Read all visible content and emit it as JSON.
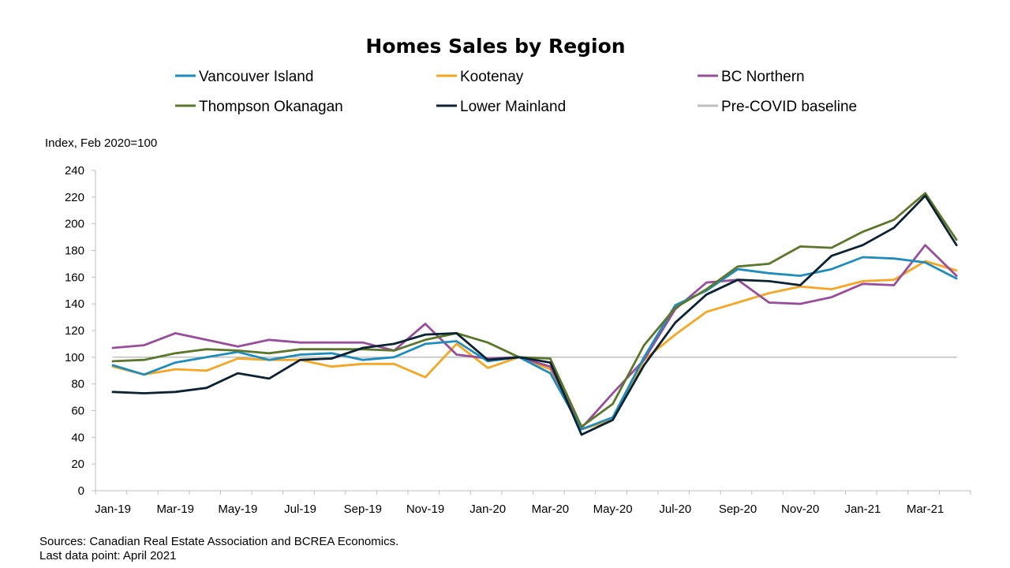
{
  "chart_data": {
    "type": "line",
    "title": "Homes Sales by Region",
    "ylabel": "Index, Feb 2020=100",
    "ylim": [
      0,
      240
    ],
    "yticks": [
      0,
      20,
      40,
      60,
      80,
      100,
      120,
      140,
      160,
      180,
      200,
      220,
      240
    ],
    "x": [
      "Jan-19",
      "Feb-19",
      "Mar-19",
      "Apr-19",
      "May-19",
      "Jun-19",
      "Jul-19",
      "Aug-19",
      "Sep-19",
      "Oct-19",
      "Nov-19",
      "Dec-19",
      "Jan-20",
      "Feb-20",
      "Mar-20",
      "Apr-20",
      "May-20",
      "Jun-20",
      "Jul-20",
      "Aug-20",
      "Sep-20",
      "Oct-20",
      "Nov-20",
      "Dec-20",
      "Jan-21",
      "Feb-21",
      "Mar-21",
      "Apr-21"
    ],
    "xtick_labels": [
      "Jan-19",
      "Mar-19",
      "May-19",
      "Jul-19",
      "Sep-19",
      "Nov-19",
      "Jan-20",
      "Mar-20",
      "May-20",
      "Jul-20",
      "Sep-20",
      "Nov-20",
      "Jan-21",
      "Mar-21"
    ],
    "grid": false,
    "legend_position": "top",
    "series": [
      {
        "name": "Vancouver Island",
        "color": "#1f8dbb",
        "values": [
          94,
          87,
          96,
          100,
          104,
          98,
          102,
          103,
          98,
          100,
          110,
          112,
          97,
          100,
          88,
          46,
          55,
          100,
          139,
          150,
          166,
          163,
          161,
          166,
          175,
          174,
          171,
          159
        ]
      },
      {
        "name": "Kootenay",
        "color": "#f5a623",
        "values": [
          93,
          87,
          91,
          90,
          99,
          98,
          98,
          93,
          95,
          95,
          85,
          110,
          92,
          100,
          91,
          46,
          53,
          98,
          117,
          134,
          141,
          148,
          153,
          151,
          157,
          158,
          172,
          165
        ]
      },
      {
        "name": "BC Northern",
        "color": "#984e9b",
        "values": [
          107,
          109,
          118,
          113,
          108,
          113,
          111,
          111,
          111,
          105,
          125,
          102,
          99,
          100,
          93,
          47,
          73,
          98,
          136,
          156,
          158,
          141,
          140,
          145,
          155,
          154,
          184,
          161
        ]
      },
      {
        "name": "Thompson Okanagan",
        "color": "#5c772b",
        "values": [
          97,
          98,
          103,
          106,
          105,
          103,
          106,
          106,
          106,
          105,
          113,
          118,
          111,
          100,
          99,
          48,
          65,
          109,
          137,
          151,
          168,
          170,
          183,
          182,
          194,
          203,
          223,
          188
        ]
      },
      {
        "name": "Lower Mainland",
        "color": "#0b2233",
        "values": [
          74,
          73,
          74,
          77,
          88,
          84,
          98,
          99,
          107,
          110,
          117,
          118,
          98,
          100,
          96,
          42,
          53,
          94,
          126,
          147,
          158,
          157,
          154,
          176,
          184,
          197,
          221,
          184
        ]
      },
      {
        "name": "Pre-COVID baseline",
        "color": "#bfbfbf",
        "values": [
          100,
          100,
          100,
          100,
          100,
          100,
          100,
          100,
          100,
          100,
          100,
          100,
          100,
          100,
          100,
          100,
          100,
          100,
          100,
          100,
          100,
          100,
          100,
          100,
          100,
          100,
          100,
          100
        ]
      }
    ]
  },
  "footer": {
    "sources": "Sources: Canadian Real Estate Association and BCREA Economics.",
    "last_point": "Last data point: April 2021"
  }
}
